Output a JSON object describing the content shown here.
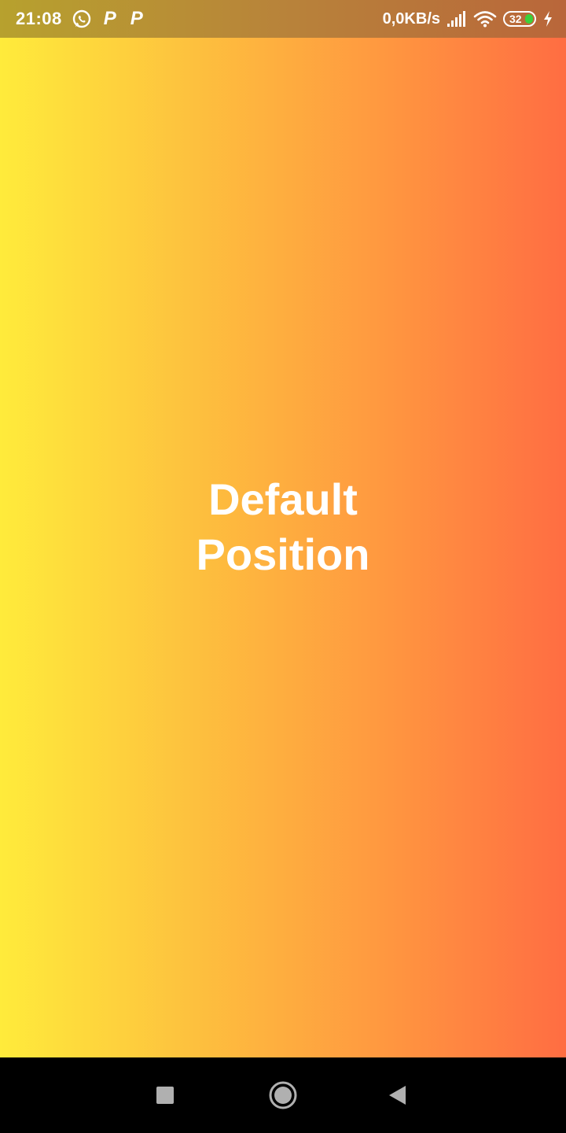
{
  "status_bar": {
    "time": "21:08",
    "notification_icons": [
      "whatsapp-icon",
      "p-app-icon",
      "p-app-icon"
    ],
    "p_letter": "P",
    "network_speed": "0,0KB/s",
    "battery_level": "32",
    "charging": true,
    "icons": [
      "signal-icon",
      "wifi-icon",
      "battery-icon",
      "charging-bolt-icon"
    ]
  },
  "main": {
    "title_line1": "Default",
    "title_line2": "Position",
    "gradient_colors": [
      "#ffeb3b",
      "#fdc23e",
      "#ff9a40",
      "#ff6d42"
    ]
  },
  "nav_bar": {
    "buttons": [
      "recents-icon",
      "home-icon",
      "back-icon"
    ],
    "color": "#000000"
  }
}
